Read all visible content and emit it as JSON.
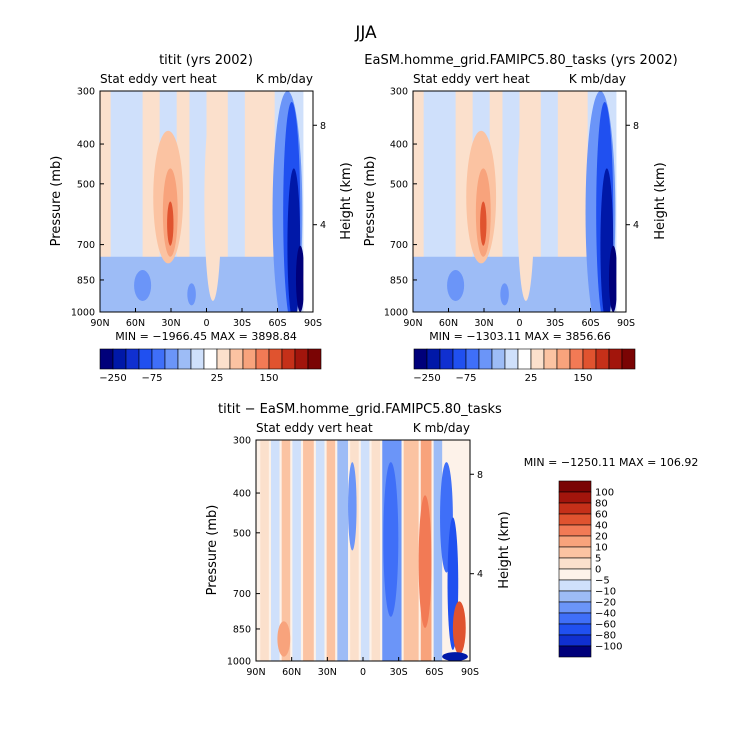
{
  "page_title": "JJA",
  "chart_data": [
    {
      "type": "heatmap",
      "panel": "left",
      "title": "titit (yrs 2002)",
      "subtitle_left": "Stat eddy vert heat",
      "subtitle_right": "K mb/day",
      "ylabel": "Pressure (mb)",
      "ylabel_right": "Height (km)",
      "y_ticks": [
        "300",
        "400",
        "500",
        "700",
        "850",
        "1000"
      ],
      "y_right_ticks": [
        "8",
        "4"
      ],
      "x_ticks": [
        "90N",
        "60N",
        "30N",
        "0",
        "30S",
        "60S",
        "90S"
      ],
      "min_max": "MIN = −1966.45   MAX = 3898.84",
      "min": -1966.45,
      "max": 3898.84
    },
    {
      "type": "heatmap",
      "panel": "right",
      "title": "EaSM.homme_grid.FAMIPC5.80_tasks (yrs 2002)",
      "subtitle_left": "Stat eddy vert heat",
      "subtitle_right": "K mb/day",
      "ylabel": "Pressure (mb)",
      "ylabel_right": "Height (km)",
      "y_ticks": [
        "300",
        "400",
        "500",
        "700",
        "850",
        "1000"
      ],
      "y_right_ticks": [
        "8",
        "4"
      ],
      "x_ticks": [
        "90N",
        "60N",
        "30N",
        "0",
        "30S",
        "60S",
        "90S"
      ],
      "min_max": "MIN = −1303.11   MAX = 3856.66",
      "min": -1303.11,
      "max": 3856.66
    },
    {
      "type": "heatmap",
      "panel": "difference",
      "title": "titit − EaSM.homme_grid.FAMIPC5.80_tasks",
      "subtitle_left": "Stat eddy vert heat",
      "subtitle_right": "K mb/day",
      "ylabel": "Pressure (mb)",
      "ylabel_right": "Height (km)",
      "y_ticks": [
        "300",
        "400",
        "500",
        "700",
        "850",
        "1000"
      ],
      "y_right_ticks": [
        "8",
        "4"
      ],
      "x_ticks": [
        "90N",
        "60N",
        "30N",
        "0",
        "30S",
        "60S",
        "90S"
      ],
      "min_max": "MIN = −1250.11   MAX = 106.92",
      "min": -1250.11,
      "max": 106.92
    }
  ],
  "colorbar_top": {
    "labels": [
      "−250",
      "−75",
      "25",
      "150"
    ],
    "colors": [
      "#00007a",
      "#0018a8",
      "#1030d0",
      "#2050f0",
      "#3f6ff8",
      "#6b95f8",
      "#9dbcf6",
      "#cfe0fb",
      "#ffffff",
      "#fbe0cc",
      "#fbc3a2",
      "#f8a37c",
      "#f27a55",
      "#e0532f",
      "#c53019",
      "#a2150c",
      "#7a0404"
    ]
  },
  "colorbar_diff": {
    "labels": [
      "100",
      "80",
      "60",
      "40",
      "20",
      "10",
      "5",
      "0",
      "−5",
      "−10",
      "−20",
      "−40",
      "−60",
      "−80",
      "−100"
    ],
    "colors": [
      "#7a0404",
      "#a2150c",
      "#c53019",
      "#e0532f",
      "#f27a55",
      "#f8a37c",
      "#fbc3a2",
      "#fbe0cc",
      "#fdf2e9",
      "#cfe0fb",
      "#9dbcf6",
      "#6b95f8",
      "#3f6ff8",
      "#2050f0",
      "#1030d0",
      "#00007a"
    ]
  }
}
